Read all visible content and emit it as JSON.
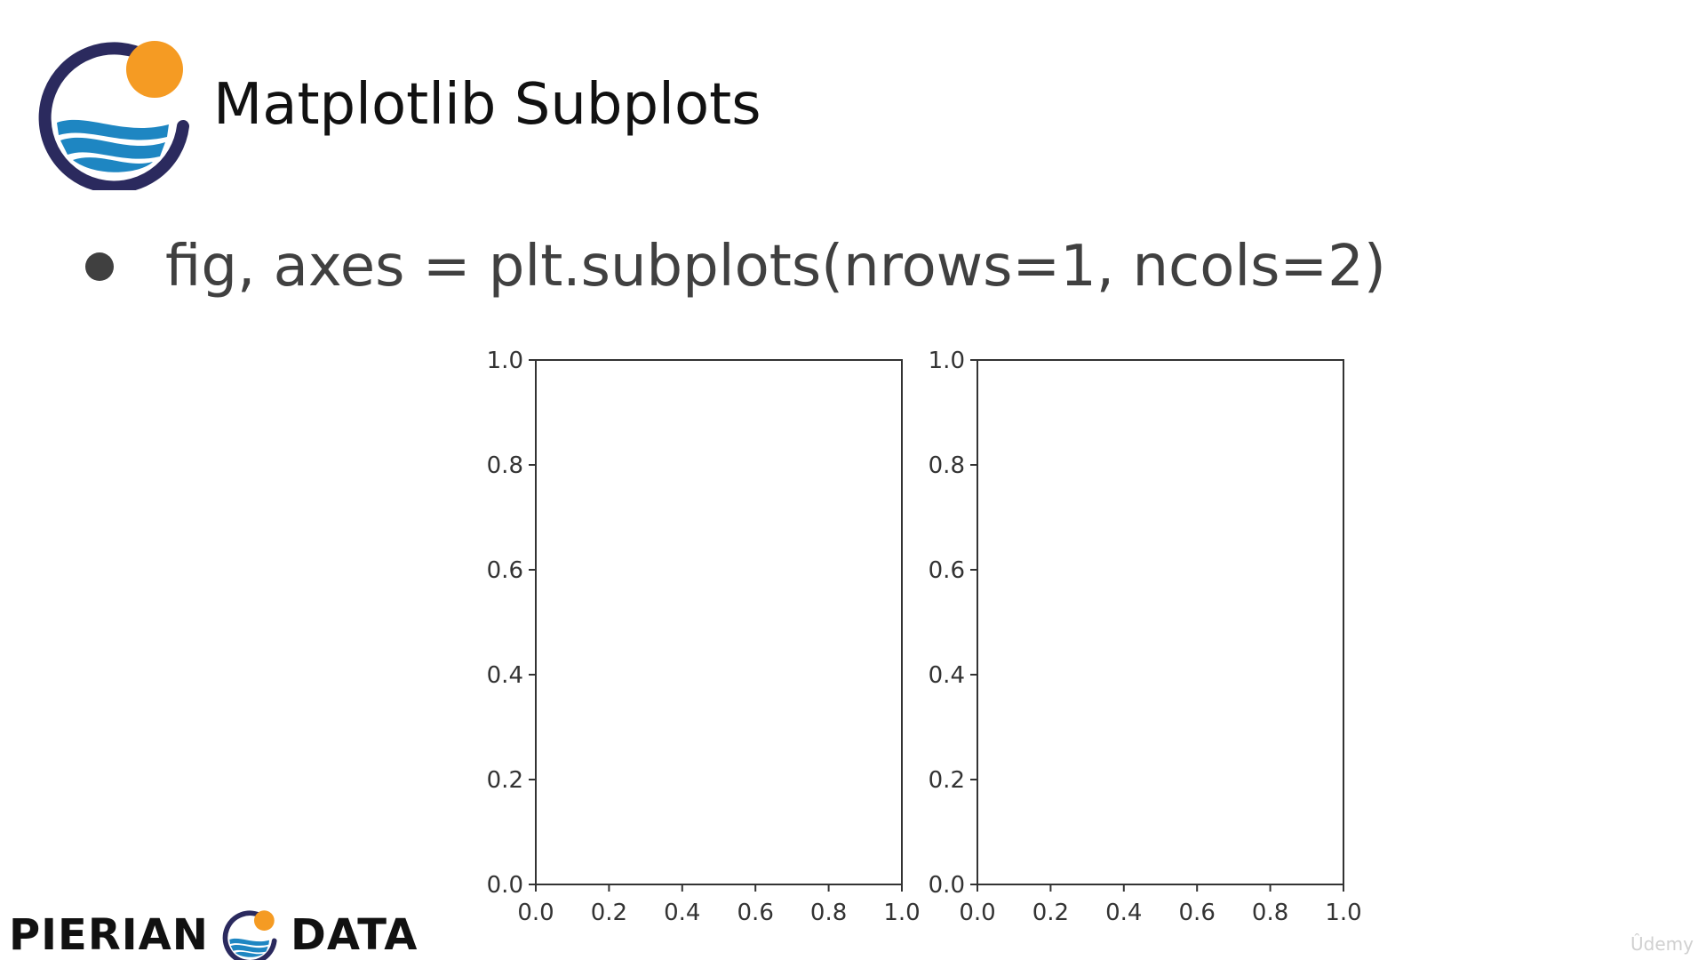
{
  "slide": {
    "title": "Matplotlib Subplots",
    "bullet": "fig, axes = plt.subplots(nrows=1, ncols=2)"
  },
  "footer": {
    "brand_left": "PIERIAN",
    "brand_right": "DATA"
  },
  "watermark": "Ûdemy",
  "colors": {
    "logo_ring": "#2b2a5e",
    "logo_sun": "#f59b23",
    "logo_wave": "#1e86c2",
    "axes_line": "#333333",
    "bullet_text": "#404040"
  },
  "chart_data": [
    {
      "type": "scatter",
      "series": [],
      "xlim": [
        0.0,
        1.0
      ],
      "ylim": [
        0.0,
        1.0
      ],
      "xticks": [
        "0.0",
        "0.2",
        "0.4",
        "0.6",
        "0.8",
        "1.0"
      ],
      "yticks": [
        "0.0",
        "0.2",
        "0.4",
        "0.6",
        "0.8",
        "1.0"
      ],
      "title": "",
      "xlabel": "",
      "ylabel": "",
      "grid": false
    },
    {
      "type": "scatter",
      "series": [],
      "xlim": [
        0.0,
        1.0
      ],
      "ylim": [
        0.0,
        1.0
      ],
      "xticks": [
        "0.0",
        "0.2",
        "0.4",
        "0.6",
        "0.8",
        "1.0"
      ],
      "yticks": [
        "0.0",
        "0.2",
        "0.4",
        "0.6",
        "0.8",
        "1.0"
      ],
      "title": "",
      "xlabel": "",
      "ylabel": "",
      "grid": false
    }
  ]
}
